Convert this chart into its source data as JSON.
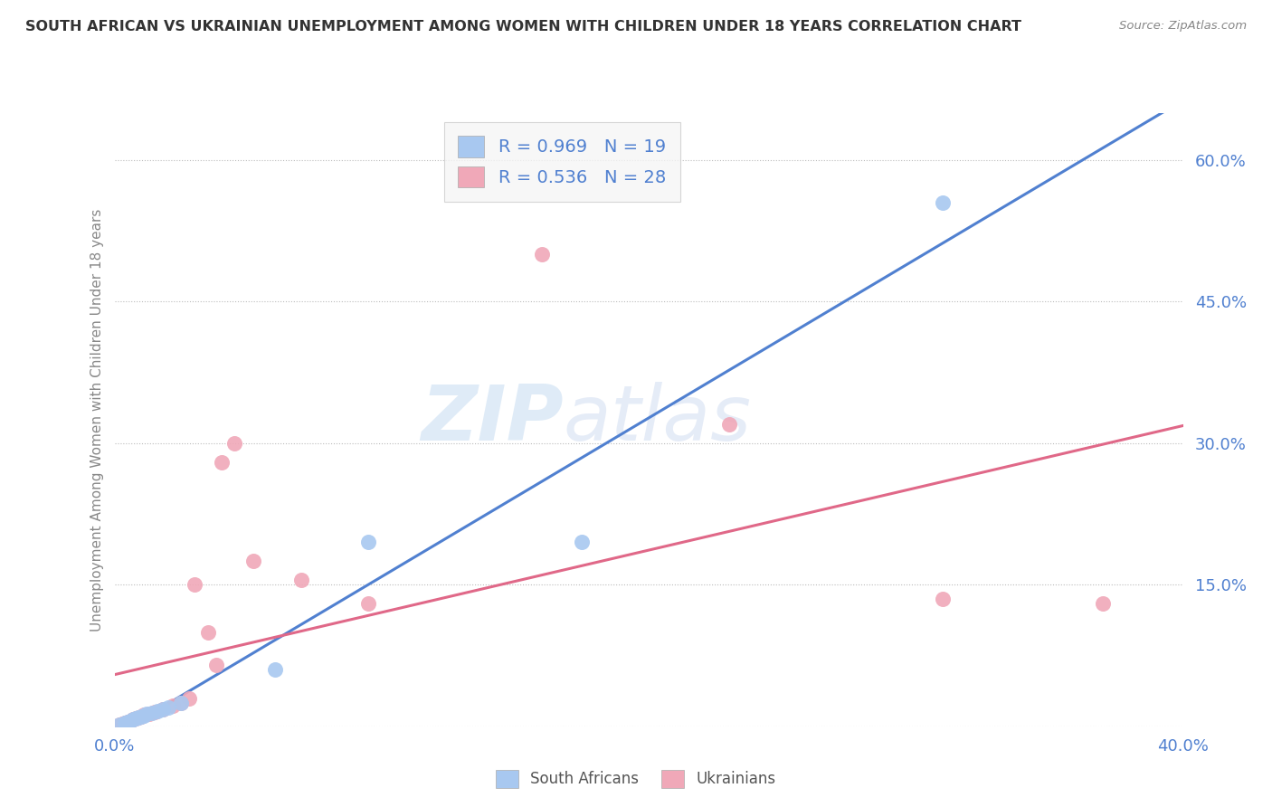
{
  "title": "SOUTH AFRICAN VS UKRAINIAN UNEMPLOYMENT AMONG WOMEN WITH CHILDREN UNDER 18 YEARS CORRELATION CHART",
  "source": "Source: ZipAtlas.com",
  "ylabel": "Unemployment Among Women with Children Under 18 years",
  "xlim": [
    0.0,
    0.4
  ],
  "ylim": [
    0.0,
    0.65
  ],
  "xticks": [
    0.0,
    0.1,
    0.2,
    0.3,
    0.4
  ],
  "xtick_labels": [
    "0.0%",
    "",
    "",
    "",
    "40.0%"
  ],
  "yticks_right": [
    0.0,
    0.15,
    0.3,
    0.45,
    0.6
  ],
  "ytick_labels_right": [
    "",
    "15.0%",
    "30.0%",
    "45.0%",
    "60.0%"
  ],
  "blue_R": 0.969,
  "blue_N": 19,
  "pink_R": 0.536,
  "pink_N": 28,
  "blue_color": "#A8C8F0",
  "pink_color": "#F0A8B8",
  "blue_line_color": "#5080D0",
  "pink_line_color": "#E06888",
  "legend_label_blue": "South Africans",
  "legend_label_pink": "Ukrainians",
  "watermark_zip": "ZIP",
  "watermark_atlas": "atlas",
  "background_color": "#FFFFFF",
  "grid_color": "#BBBBBB",
  "title_color": "#333333",
  "source_color": "#888888",
  "blue_scatter_x": [
    0.002,
    0.004,
    0.005,
    0.006,
    0.007,
    0.008,
    0.009,
    0.01,
    0.011,
    0.012,
    0.014,
    0.016,
    0.018,
    0.02,
    0.025,
    0.06,
    0.095,
    0.175,
    0.31
  ],
  "blue_scatter_y": [
    0.002,
    0.004,
    0.005,
    0.006,
    0.007,
    0.008,
    0.009,
    0.01,
    0.011,
    0.013,
    0.014,
    0.016,
    0.018,
    0.02,
    0.025,
    0.06,
    0.195,
    0.195,
    0.555
  ],
  "pink_scatter_x": [
    0.002,
    0.003,
    0.004,
    0.005,
    0.006,
    0.007,
    0.008,
    0.009,
    0.01,
    0.011,
    0.013,
    0.015,
    0.018,
    0.022,
    0.025,
    0.028,
    0.03,
    0.035,
    0.038,
    0.04,
    0.045,
    0.052,
    0.07,
    0.095,
    0.16,
    0.23,
    0.31,
    0.37
  ],
  "pink_scatter_y": [
    0.002,
    0.003,
    0.004,
    0.005,
    0.006,
    0.007,
    0.008,
    0.009,
    0.01,
    0.012,
    0.013,
    0.015,
    0.018,
    0.022,
    0.025,
    0.03,
    0.15,
    0.1,
    0.065,
    0.28,
    0.3,
    0.175,
    0.155,
    0.13,
    0.5,
    0.32,
    0.135,
    0.13
  ]
}
